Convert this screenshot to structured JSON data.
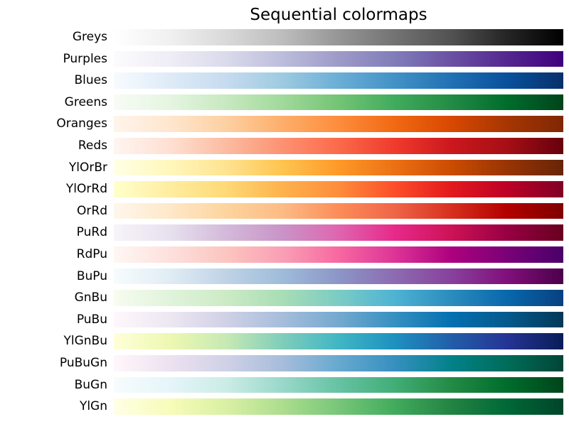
{
  "chart_data": {
    "type": "heatmap",
    "subtype": "colormap-swatches",
    "title": "Sequential colormaps",
    "orientation": "horizontal",
    "labels_position": "left",
    "value_domain": [
      0,
      1
    ],
    "axes_visible": false,
    "background_color": "#ffffff",
    "text_color": "#000000",
    "rows": [
      {
        "label": "Greys",
        "stops": [
          "#ffffff",
          "#f0f0f0",
          "#d9d9d9",
          "#bdbdbd",
          "#969696",
          "#737373",
          "#525252",
          "#252525",
          "#000000"
        ]
      },
      {
        "label": "Purples",
        "stops": [
          "#fcfbfd",
          "#efedf5",
          "#dadaeb",
          "#bcbddc",
          "#9e9ac8",
          "#807dba",
          "#6a51a3",
          "#54278f",
          "#3f007d"
        ]
      },
      {
        "label": "Blues",
        "stops": [
          "#f7fbff",
          "#deebf7",
          "#c6dbef",
          "#9ecae1",
          "#6baed6",
          "#4292c6",
          "#2171b5",
          "#08519c",
          "#08306b"
        ]
      },
      {
        "label": "Greens",
        "stops": [
          "#f7fcf5",
          "#e5f5e0",
          "#c7e9c0",
          "#a1d99b",
          "#74c476",
          "#41ab5d",
          "#238b45",
          "#006d2c",
          "#00441b"
        ]
      },
      {
        "label": "Oranges",
        "stops": [
          "#fff5eb",
          "#fee6ce",
          "#fdd0a2",
          "#fdae6b",
          "#fd8d3c",
          "#f16913",
          "#d94801",
          "#a63603",
          "#7f2704"
        ]
      },
      {
        "label": "Reds",
        "stops": [
          "#fff5f0",
          "#fee0d2",
          "#fcbba1",
          "#fc9272",
          "#fb6a4a",
          "#ef3b2c",
          "#cb181d",
          "#a50f15",
          "#67000d"
        ]
      },
      {
        "label": "YlOrBr",
        "stops": [
          "#ffffe5",
          "#fff7bc",
          "#fee391",
          "#fec44f",
          "#fe9929",
          "#ec7014",
          "#cc4c02",
          "#993404",
          "#662506"
        ]
      },
      {
        "label": "YlOrRd",
        "stops": [
          "#ffffcc",
          "#ffeda0",
          "#fed976",
          "#feb24c",
          "#fd8d3c",
          "#fc4e2a",
          "#e31a1c",
          "#bd0026",
          "#800026"
        ]
      },
      {
        "label": "OrRd",
        "stops": [
          "#fff7ec",
          "#fee8c8",
          "#fdd49e",
          "#fdbb84",
          "#fc8d59",
          "#ef6548",
          "#d7301f",
          "#b30000",
          "#7f0000"
        ]
      },
      {
        "label": "PuRd",
        "stops": [
          "#f7f4f9",
          "#e7e1ef",
          "#d4b9da",
          "#c994c7",
          "#df65b0",
          "#e7298a",
          "#ce1256",
          "#980043",
          "#67001f"
        ]
      },
      {
        "label": "RdPu",
        "stops": [
          "#fff7f3",
          "#fde0dd",
          "#fcc5c0",
          "#fa9fb5",
          "#f768a1",
          "#dd3497",
          "#ae017e",
          "#7a0177",
          "#49006a"
        ]
      },
      {
        "label": "BuPu",
        "stops": [
          "#f7fcfd",
          "#e0ecf4",
          "#bfd3e6",
          "#9ebcda",
          "#8c96c6",
          "#8c6bb1",
          "#88419d",
          "#810f7c",
          "#4d004b"
        ]
      },
      {
        "label": "GnBu",
        "stops": [
          "#f7fcf0",
          "#e0f3db",
          "#ccebc5",
          "#a8ddb5",
          "#7bccc4",
          "#4eb3d3",
          "#2b8cbe",
          "#0868ac",
          "#084081"
        ]
      },
      {
        "label": "PuBu",
        "stops": [
          "#fff7fb",
          "#ece7f2",
          "#d0d1e6",
          "#a6bddb",
          "#74a9cf",
          "#3690c0",
          "#0570b0",
          "#045a8d",
          "#023858"
        ]
      },
      {
        "label": "YlGnBu",
        "stops": [
          "#ffffd9",
          "#edf8b1",
          "#c7e9b4",
          "#7fcdbb",
          "#41b6c4",
          "#1d91c0",
          "#225ea8",
          "#253494",
          "#081d58"
        ]
      },
      {
        "label": "PuBuGn",
        "stops": [
          "#fff7fb",
          "#ece2f0",
          "#d0d1e6",
          "#a6bddb",
          "#67a9cf",
          "#3690c0",
          "#02818a",
          "#016c59",
          "#014636"
        ]
      },
      {
        "label": "BuGn",
        "stops": [
          "#f7fcfd",
          "#e5f5f9",
          "#ccece6",
          "#99d8c9",
          "#66c2a4",
          "#41ae76",
          "#238b45",
          "#006d2c",
          "#00441b"
        ]
      },
      {
        "label": "YlGn",
        "stops": [
          "#ffffe5",
          "#f7fcb9",
          "#d9f0a3",
          "#addd8e",
          "#78c679",
          "#41ab5d",
          "#238443",
          "#006837",
          "#004529"
        ]
      }
    ]
  }
}
